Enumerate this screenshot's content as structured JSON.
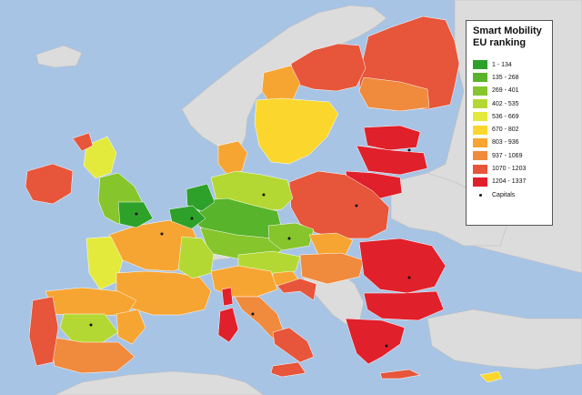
{
  "map": {
    "colors": {
      "sea": "#a8c4e4",
      "land_outside": "#dcdcdc",
      "border": "#ffffff",
      "capital_dot": "#111111"
    },
    "legend": {
      "title_line1": "Smart Mobility",
      "title_line2": "EU ranking",
      "items": [
        {
          "label": "1 - 134",
          "color": "#2ea12a"
        },
        {
          "label": "135 - 268",
          "color": "#58b42a"
        },
        {
          "label": "269 - 401",
          "color": "#86c52c"
        },
        {
          "label": "402 - 535",
          "color": "#b4d833"
        },
        {
          "label": "536 - 669",
          "color": "#e4ea3c"
        },
        {
          "label": "670 - 802",
          "color": "#fbd72e"
        },
        {
          "label": "803 - 936",
          "color": "#f7a532"
        },
        {
          "label": "937 - 1069",
          "color": "#f08a3c"
        },
        {
          "label": "1070 - 1203",
          "color": "#e7553a"
        },
        {
          "label": "1204 - 1337",
          "color": "#e0202a"
        }
      ],
      "capitals_label": "Capitals"
    }
  }
}
